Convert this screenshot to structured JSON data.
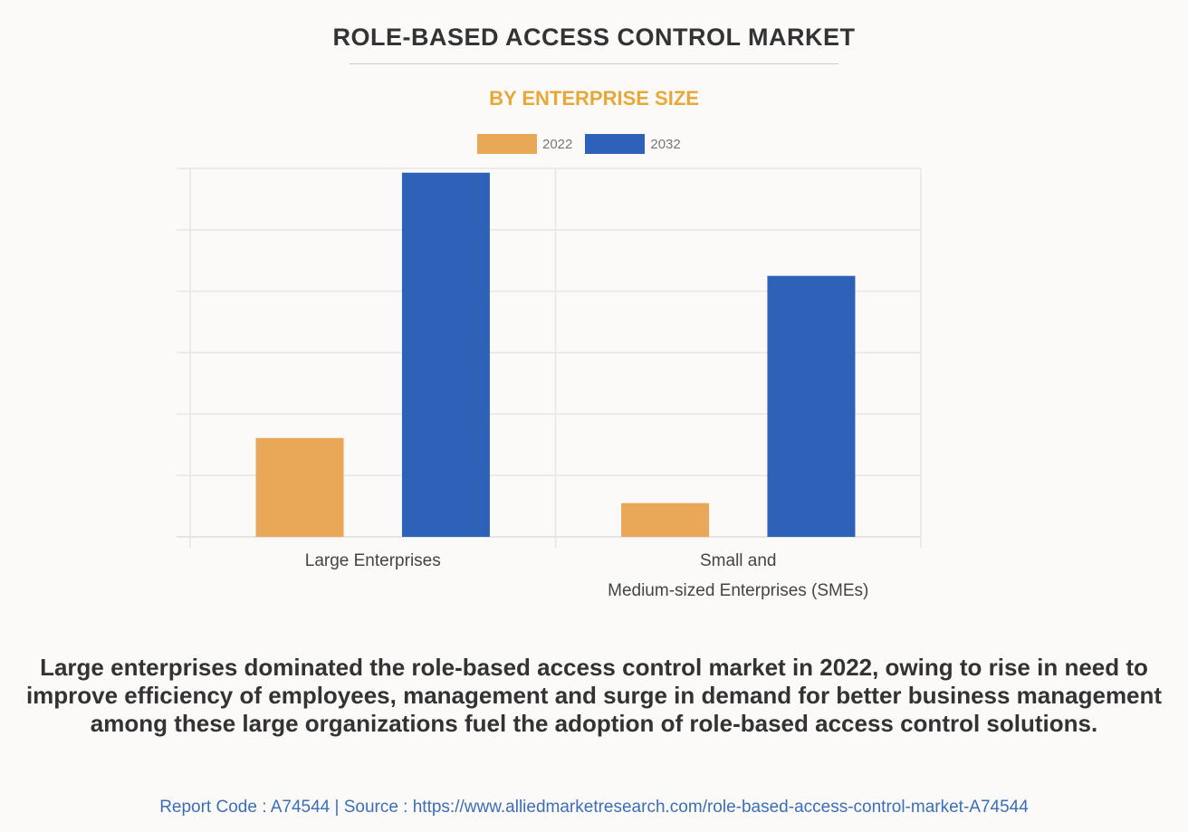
{
  "title": "ROLE-BASED ACCESS CONTROL MARKET",
  "subtitle": "BY ENTERPRISE SIZE",
  "chart_data": {
    "type": "bar",
    "categories": [
      [
        "Large Enterprises"
      ],
      [
        "Small and",
        "Medium-sized Enterprises (SMEs)"
      ]
    ],
    "series": [
      {
        "name": "2022",
        "color": "#e8a857",
        "values": [
          1.61,
          0.55
        ]
      },
      {
        "name": "2032",
        "color": "#2e62b8",
        "values": [
          5.93,
          4.25
        ]
      }
    ],
    "ylim": [
      0,
      6
    ],
    "y_ticks_shown": false,
    "grid": true,
    "legend": "top-center"
  },
  "description": "Large enterprises dominated the role-based access control market in 2022, owing to rise in need to improve efficiency of employees, management and surge in demand for better business management among these large organizations fuel the adoption of role-based access control solutions.",
  "footer": "Report Code : A74544  |  Source : https://www.alliedmarketresearch.com/role-based-access-control-market-A74544"
}
